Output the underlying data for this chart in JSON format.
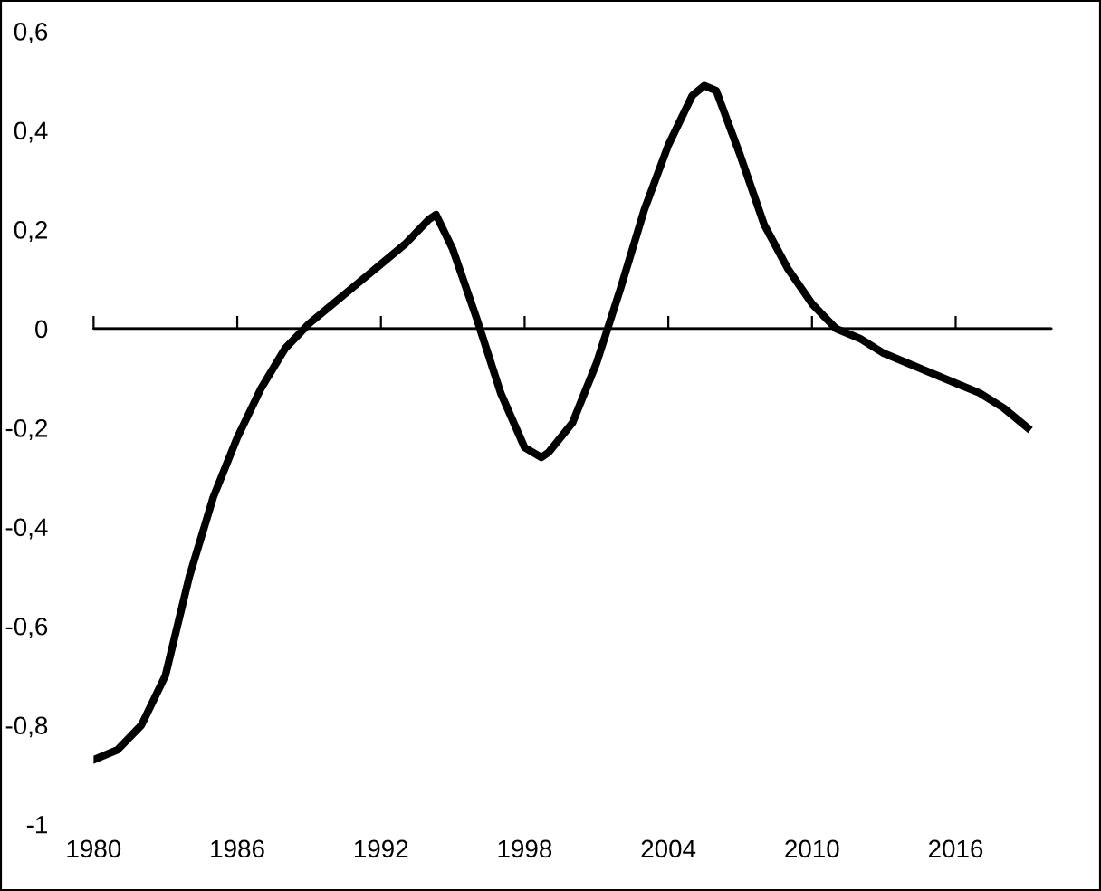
{
  "chart_data": {
    "type": "line",
    "x": [
      1980,
      1981,
      1982,
      1983,
      1984,
      1985,
      1986,
      1987,
      1988,
      1989,
      1990,
      1991,
      1992,
      1993,
      1994,
      1994.3,
      1995,
      1996,
      1997,
      1998,
      1998.7,
      1999,
      2000,
      2001,
      2002,
      2003,
      2004,
      2005,
      2005.5,
      2006,
      2007,
      2008,
      2009,
      2010,
      2011,
      2012,
      2013,
      2014,
      2015,
      2016,
      2017,
      2018,
      2019
    ],
    "series": [
      {
        "color": "#000000",
        "values": [
          -0.87,
          -0.85,
          -0.8,
          -0.7,
          -0.5,
          -0.34,
          -0.22,
          -0.12,
          -0.04,
          0.01,
          0.05,
          0.09,
          0.13,
          0.17,
          0.22,
          0.23,
          0.16,
          0.02,
          -0.13,
          -0.24,
          -0.26,
          -0.25,
          -0.19,
          -0.07,
          0.08,
          0.24,
          0.37,
          0.47,
          0.49,
          0.48,
          0.35,
          0.21,
          0.12,
          0.05,
          0.0,
          -0.02,
          -0.05,
          -0.07,
          -0.09,
          -0.11,
          -0.13,
          -0.16,
          -0.2
        ]
      }
    ],
    "xlim": [
      1980,
      2020
    ],
    "xticks": [
      1980,
      1986,
      1992,
      1998,
      2004,
      2010,
      2016
    ],
    "ylim": [
      -1,
      0.6
    ],
    "yticks": [
      {
        "value": -1,
        "label": "-1"
      },
      {
        "value": -0.8,
        "label": "-0,8"
      },
      {
        "value": -0.6,
        "label": "-0,6"
      },
      {
        "value": -0.4,
        "label": "-0,4"
      },
      {
        "value": -0.2,
        "label": "-0,2"
      },
      {
        "value": 0,
        "label": "0"
      },
      {
        "value": 0.2,
        "label": "0,2"
      },
      {
        "value": 0.4,
        "label": "0,4"
      },
      {
        "value": 0.6,
        "label": "0,6"
      }
    ],
    "ref_lines": [
      {
        "axis": "y",
        "value": 0
      }
    ],
    "marker": "none",
    "line_style": "solid"
  }
}
